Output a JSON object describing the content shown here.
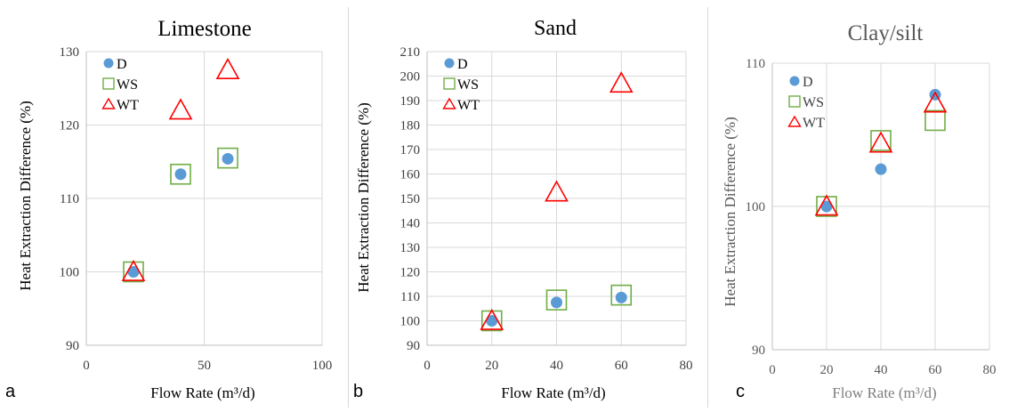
{
  "chart_data": [
    {
      "type": "scatter",
      "panel_label": "a",
      "title": "Limestone",
      "xlabel": "Flow Rate (m³/d)",
      "ylabel": "Heat Extraction Difference (%)",
      "xlim": [
        0,
        100
      ],
      "ylim": [
        90,
        130
      ],
      "xticks": [
        "0",
        "50",
        "100"
      ],
      "yticks": [
        "90",
        "100",
        "110",
        "120",
        "130"
      ],
      "grid": "major gridlines",
      "legend": "top-left",
      "series": [
        {
          "name": "D",
          "marker": "circle",
          "color": "#5b9bd5",
          "points": [
            [
              20,
              100
            ],
            [
              40,
              113.3
            ],
            [
              60,
              115.4
            ]
          ]
        },
        {
          "name": "WS",
          "marker": "square",
          "color": "#70ad47",
          "points": [
            [
              20,
              100
            ],
            [
              40,
              113.3
            ],
            [
              60,
              115.5
            ]
          ]
        },
        {
          "name": "WT",
          "marker": "triangle",
          "color": "#ff0000",
          "points": [
            [
              20,
              100
            ],
            [
              40,
              122
            ],
            [
              60,
              127.5
            ]
          ]
        }
      ]
    },
    {
      "type": "scatter",
      "panel_label": "b",
      "title": "Sand",
      "xlabel": "Flow Rate (m³/d)",
      "ylabel": "Heat Extraction Difference (%)",
      "xlim": [
        0,
        80
      ],
      "ylim": [
        90,
        210
      ],
      "xticks": [
        "0",
        "20",
        "40",
        "60",
        "80"
      ],
      "yticks": [
        "90",
        "100",
        "110",
        "120",
        "130",
        "140",
        "150",
        "160",
        "170",
        "180",
        "190",
        "200",
        "210"
      ],
      "grid": "major gridlines",
      "legend": "top-left",
      "series": [
        {
          "name": "D",
          "marker": "circle",
          "color": "#5b9bd5",
          "points": [
            [
              20,
              100
            ],
            [
              40,
              107.5
            ],
            [
              60,
              109.5
            ]
          ]
        },
        {
          "name": "WS",
          "marker": "square",
          "color": "#70ad47",
          "points": [
            [
              20,
              100
            ],
            [
              40,
              108.5
            ],
            [
              60,
              110.5
            ]
          ]
        },
        {
          "name": "WT",
          "marker": "triangle",
          "color": "#ff0000",
          "points": [
            [
              20,
              100
            ],
            [
              40,
              152.5
            ],
            [
              60,
              197
            ]
          ]
        }
      ]
    },
    {
      "type": "scatter",
      "panel_label": "c",
      "title": "Clay/silt",
      "xlabel": "Flow  Rate (m³/d)",
      "ylabel": "Heat Extraction Difference (%)",
      "xlim": [
        0,
        80
      ],
      "ylim": [
        90,
        110
      ],
      "xticks": [
        "0",
        "20",
        "40",
        "60",
        "80"
      ],
      "yticks": [
        "90",
        "100",
        "110"
      ],
      "grid": "major gridlines",
      "legend": "top-left",
      "series": [
        {
          "name": "D",
          "marker": "circle",
          "color": "#5b9bd5",
          "points": [
            [
              20,
              100
            ],
            [
              40,
              102.6
            ],
            [
              60,
              107.8
            ]
          ]
        },
        {
          "name": "WS",
          "marker": "square",
          "color": "#70ad47",
          "points": [
            [
              20,
              100
            ],
            [
              40,
              104.6
            ],
            [
              60,
              106
            ]
          ]
        },
        {
          "name": "WT",
          "marker": "triangle",
          "color": "#ff0000",
          "points": [
            [
              20,
              100
            ],
            [
              40,
              104.4
            ],
            [
              60,
              107.2
            ]
          ]
        }
      ]
    }
  ]
}
